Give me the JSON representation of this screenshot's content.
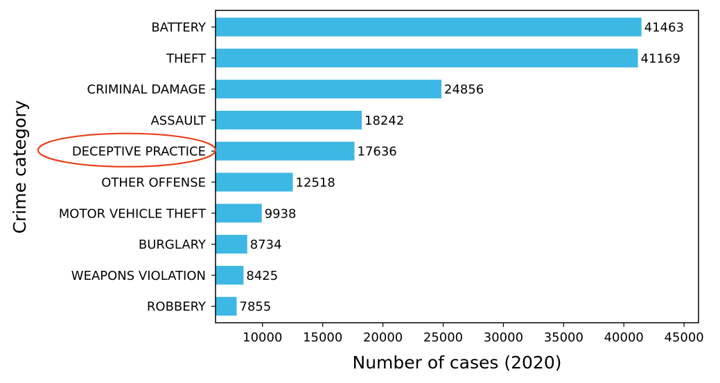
{
  "chart_data": {
    "type": "bar",
    "orientation": "horizontal",
    "categories": [
      "BATTERY",
      "THEFT",
      "CRIMINAL DAMAGE",
      "ASSAULT",
      "DECEPTIVE PRACTICE",
      "OTHER OFFENSE",
      "MOTOR VEHICLE THEFT",
      "BURGLARY",
      "WEAPONS VIOLATION",
      "ROBBERY"
    ],
    "values": [
      41463,
      41169,
      24856,
      18242,
      17636,
      12518,
      9938,
      8734,
      8425,
      7855
    ],
    "xlabel": "Number of cases (2020)",
    "ylabel": "Crime category",
    "xlim": [
      6100,
      46200
    ],
    "xticks": [
      10000,
      15000,
      20000,
      25000,
      30000,
      35000,
      40000,
      45000
    ],
    "xtick_labels": [
      "10000",
      "15000",
      "20000",
      "25000",
      "30000",
      "35000",
      "40000",
      "45000"
    ],
    "highlighted_category": "DECEPTIVE PRACTICE",
    "grid": false,
    "legend": "none",
    "colors": {
      "bar": "#3db7e4",
      "highlight": "#e8401c",
      "axis": "#000000"
    }
  }
}
